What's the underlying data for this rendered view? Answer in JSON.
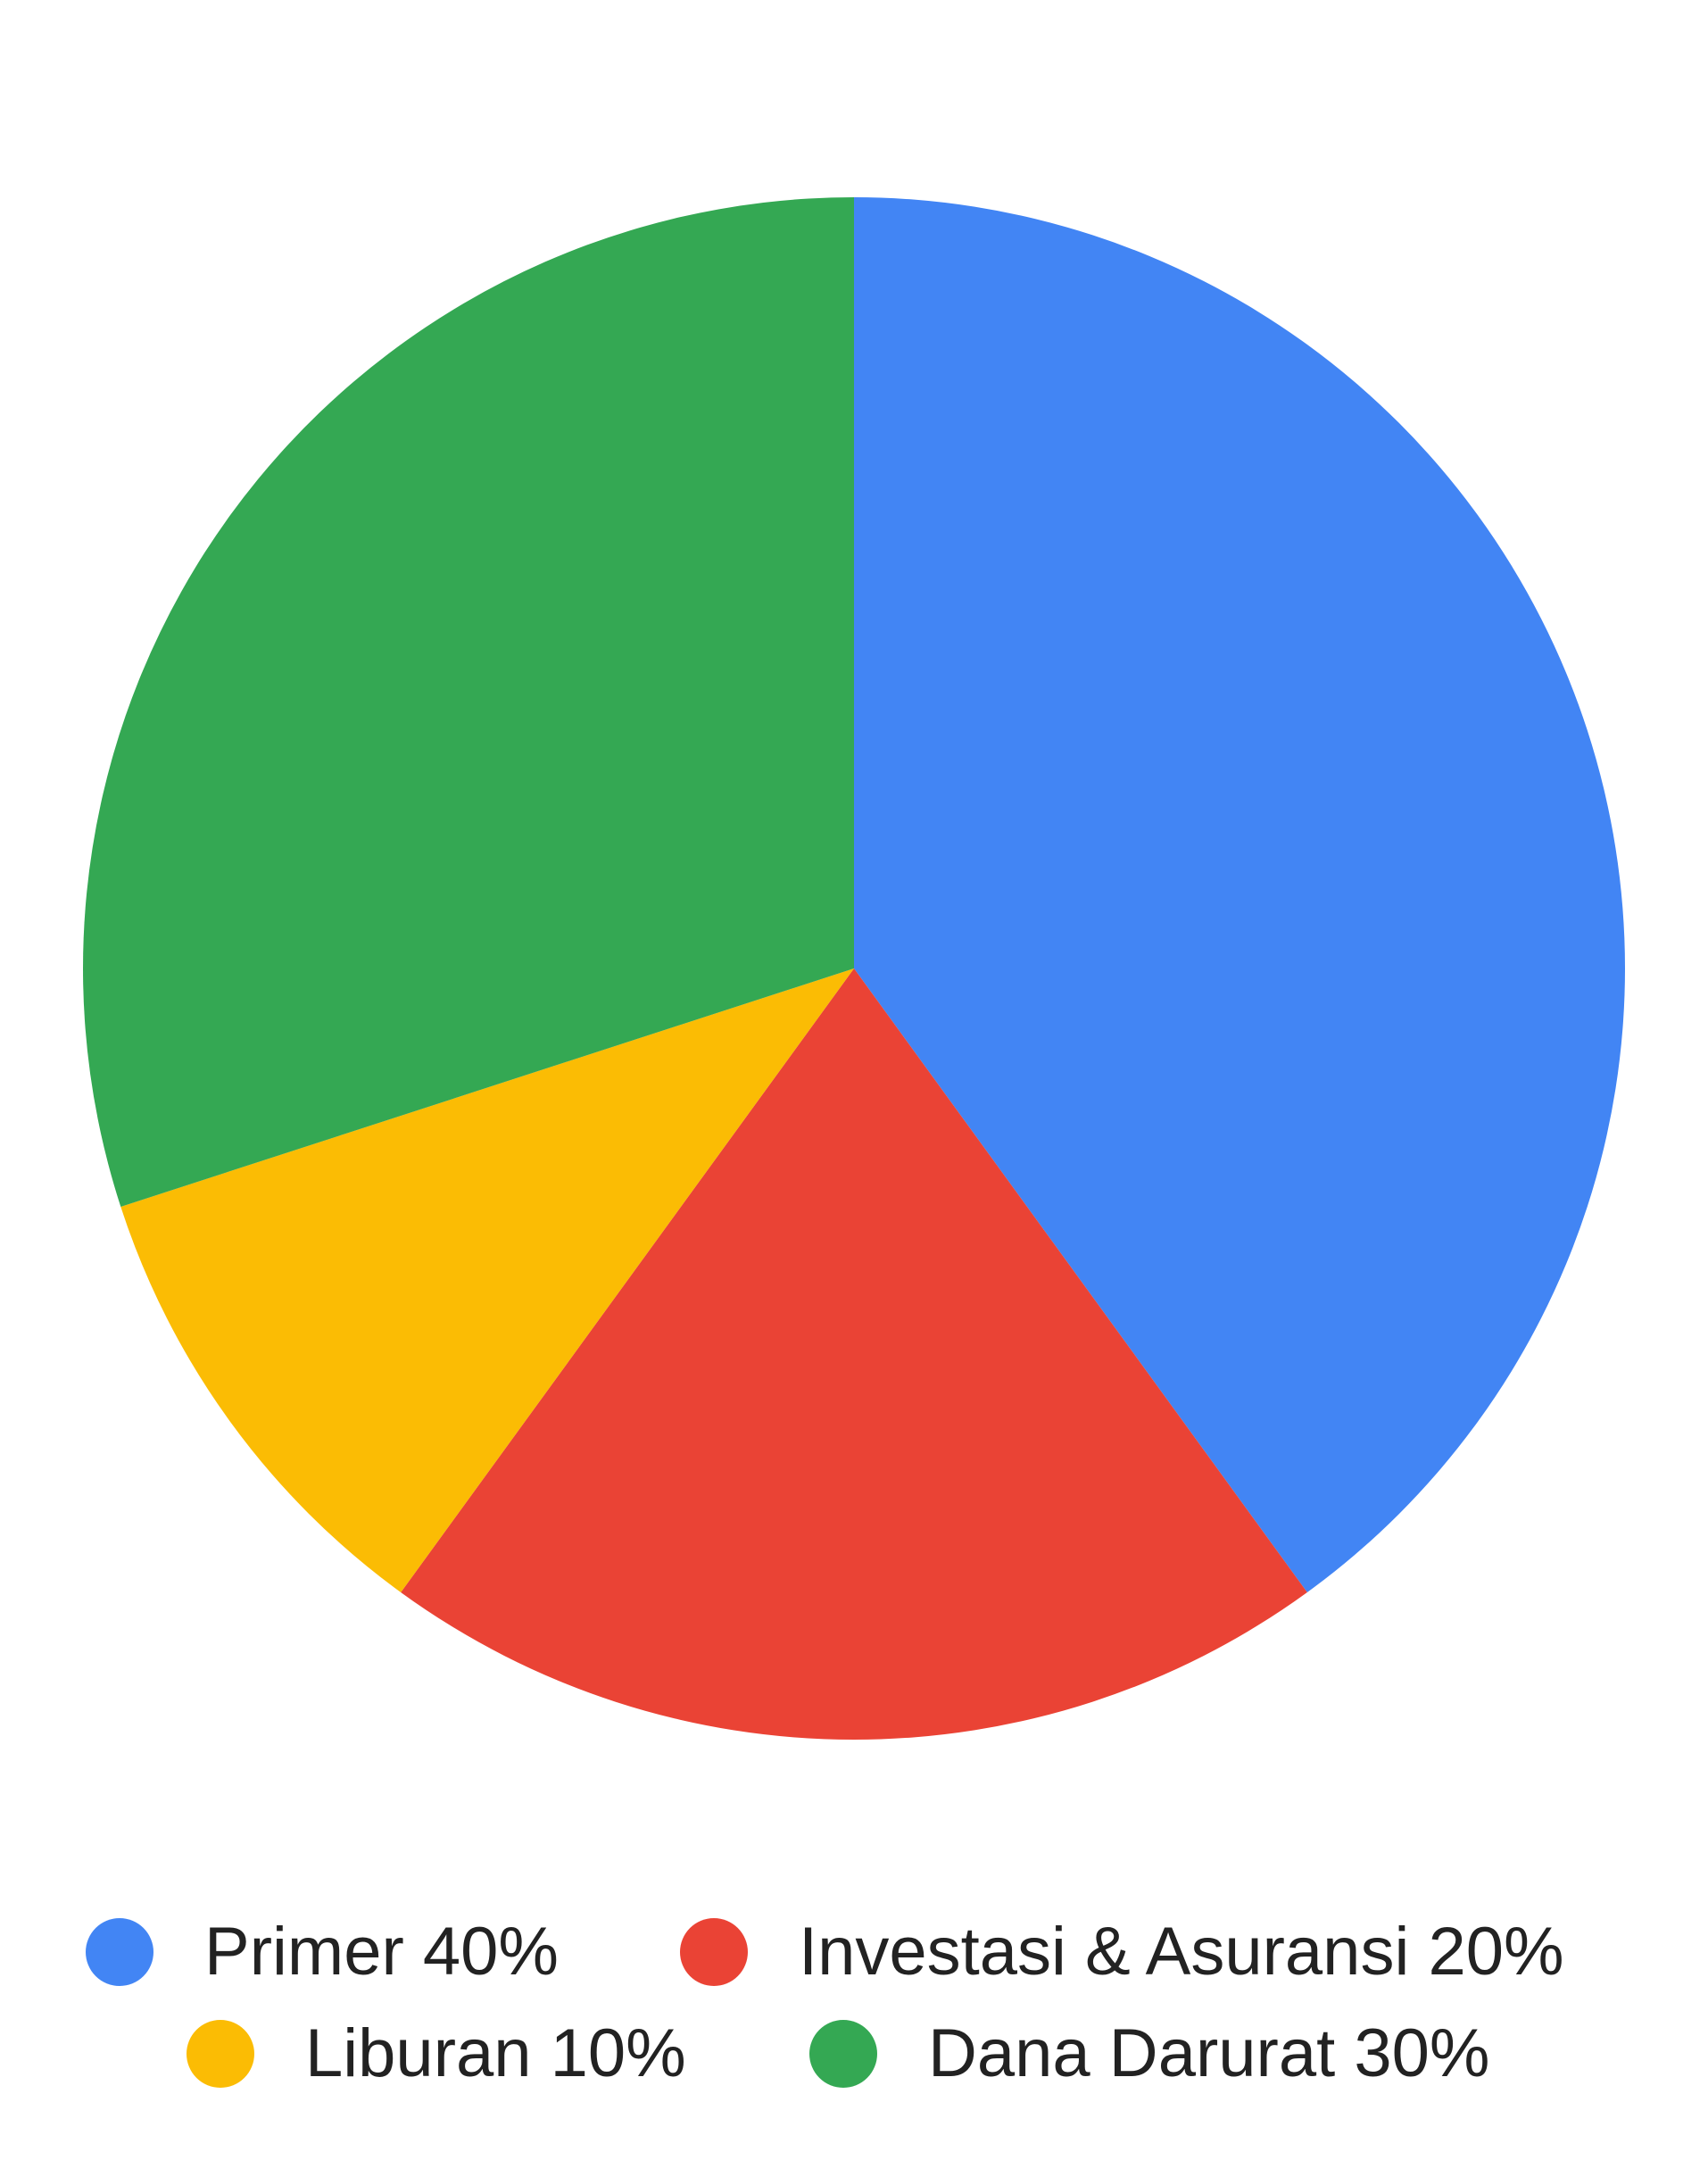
{
  "chart_data": {
    "type": "pie",
    "title": "",
    "start_angle_deg": 0,
    "direction": "clockwise",
    "legend_position": "bottom",
    "slices": [
      {
        "label": "Primer",
        "value": 40,
        "color": "#4285F4",
        "legend_text": "Primer 40%"
      },
      {
        "label": "Investasi & Asuransi",
        "value": 20,
        "color": "#EA4335",
        "legend_text": "Investasi & Asuransi 20%"
      },
      {
        "label": "Liburan",
        "value": 10,
        "color": "#FBBC04",
        "legend_text": "Liburan 10%"
      },
      {
        "label": "Dana Darurat",
        "value": 30,
        "color": "#34A853",
        "legend_text": "Dana Darurat 30%"
      }
    ]
  }
}
